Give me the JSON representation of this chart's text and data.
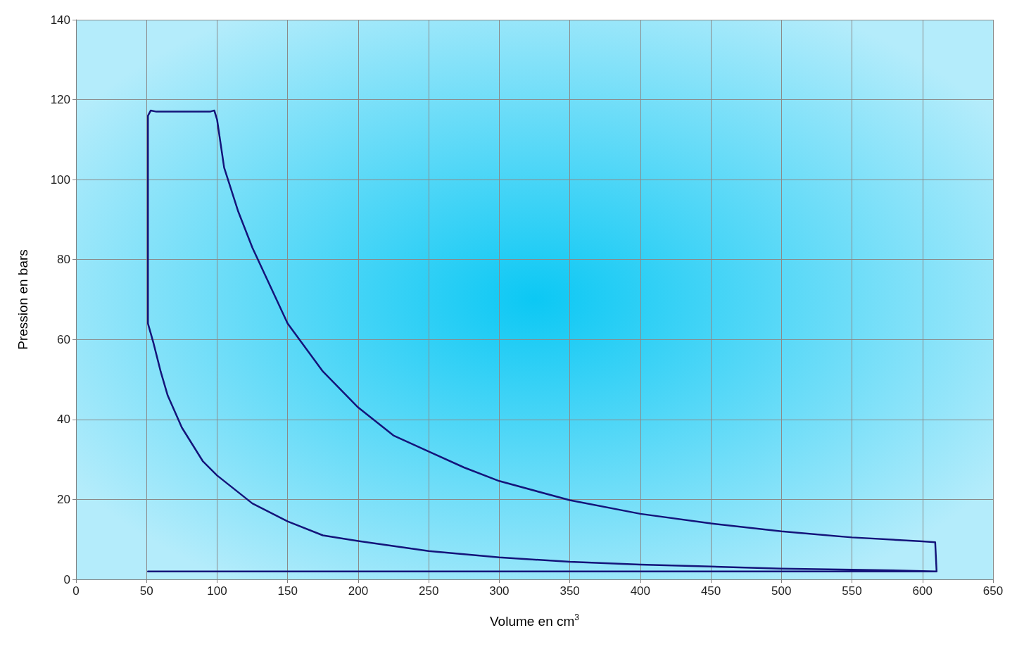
{
  "chart_data": {
    "type": "line",
    "xlabel": "Volume en cm$^{3}$",
    "ylabel": "Pression en bars",
    "xlim": [
      0,
      650
    ],
    "xticks": [
      0,
      50,
      100,
      150,
      200,
      250,
      300,
      350,
      400,
      450,
      500,
      550,
      600,
      650
    ],
    "ylim": [
      0,
      140
    ],
    "yticks": [
      0,
      20,
      40,
      60,
      80,
      100,
      120,
      140
    ],
    "grid": true,
    "marker": "none",
    "line_style": "solid",
    "series": [
      {
        "color": "#14147a",
        "x": [
          51,
          610,
          585,
          550,
          500,
          450,
          400,
          350,
          300,
          250,
          200,
          175,
          150,
          125,
          100,
          90,
          75,
          65,
          60,
          55,
          51,
          51,
          51,
          53,
          57,
          95,
          98,
          100,
          105,
          115,
          125,
          150,
          175,
          200,
          225,
          250,
          275,
          300,
          350,
          400,
          450,
          500,
          550,
          600,
          609,
          610
        ],
        "values": [
          2,
          2,
          2.2,
          2.4,
          2.7,
          3.2,
          3.7,
          4.4,
          5.5,
          7.1,
          9.6,
          11,
          14.5,
          19,
          26,
          29.5,
          38,
          46,
          52,
          59,
          64,
          111,
          116,
          117.3,
          117,
          117,
          117.3,
          115,
          103,
          92,
          83,
          64,
          52,
          43,
          36,
          32,
          28,
          24.6,
          19.8,
          16.4,
          14,
          12,
          10.5,
          9.5,
          9.3,
          2
        ]
      }
    ]
  }
}
